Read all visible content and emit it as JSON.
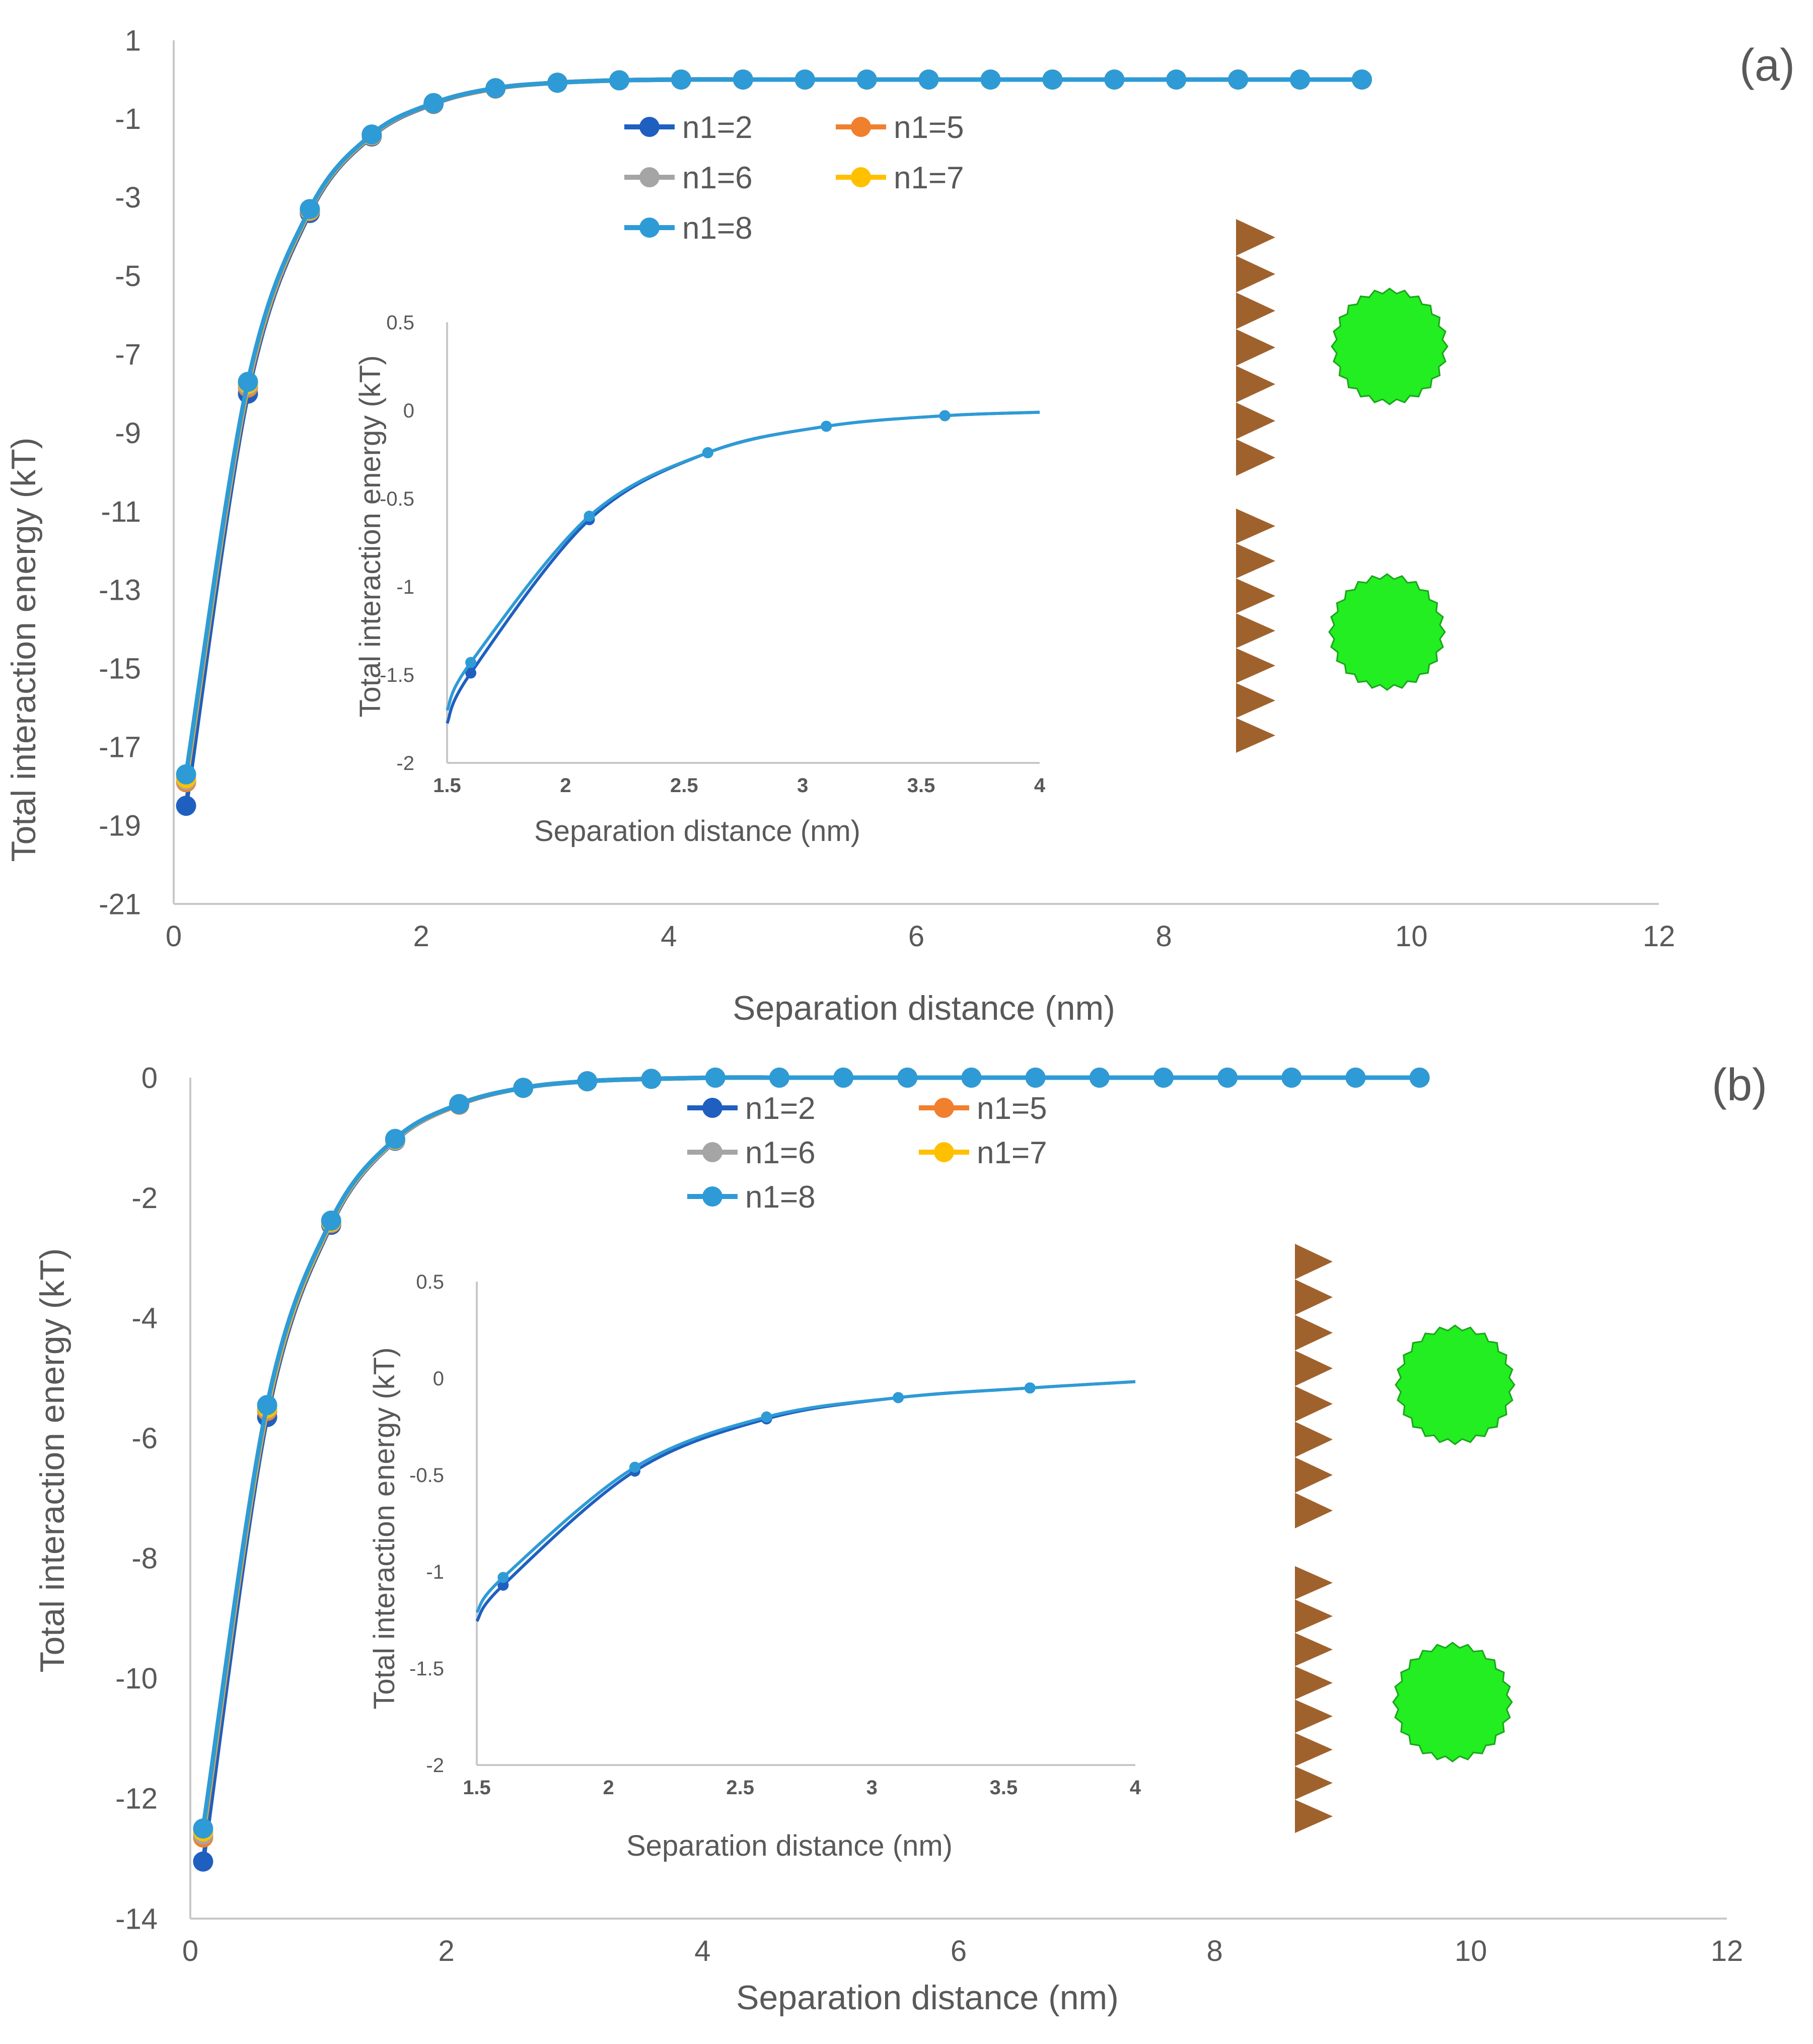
{
  "colors": {
    "n1=2": "#1f5fbf",
    "n1=5": "#f07f2e",
    "n1=6": "#a5a5a5",
    "n1=7": "#ffc000",
    "n1=8": "#2e9bd6",
    "axis": "#c8c8c8",
    "tick": "#595959",
    "particle": "#22ee22",
    "particle_edge": "#1aa51a",
    "surface": "#a0622d"
  },
  "chart_data": [
    {
      "type": "line",
      "panel": "main-a",
      "panel_label": "(a)",
      "xlabel": "Separation distance (nm)",
      "ylabel": "Total interaction energy (kT)",
      "xlim": [
        0,
        12
      ],
      "ylim": [
        -21,
        1
      ],
      "xticks": [
        "0",
        "2",
        "4",
        "6",
        "8",
        "10",
        "12"
      ],
      "yticks": [
        "1",
        "-1",
        "-3",
        "-5",
        "-7",
        "-9",
        "-11",
        "-13",
        "-15",
        "-17",
        "-19",
        "-21"
      ],
      "legend_location": "top-center",
      "x": [
        0.1,
        0.6,
        1.1,
        1.6,
        2.1,
        2.6,
        3.1,
        3.6,
        4.1,
        4.6,
        5.1,
        5.6,
        6.1,
        6.6,
        7.1,
        7.6,
        8.1,
        8.6,
        9.1,
        9.6
      ],
      "series": [
        {
          "name": "n1=2",
          "values": [
            -18.5,
            -8.0,
            -3.4,
            -1.45,
            -0.62,
            -0.23,
            -0.08,
            -0.02,
            0,
            0,
            0,
            0,
            0,
            0,
            0,
            0,
            0,
            0,
            0,
            0
          ]
        },
        {
          "name": "n1=5",
          "values": [
            -17.9,
            -7.85,
            -3.35,
            -1.43,
            -0.61,
            -0.23,
            -0.08,
            -0.02,
            0,
            0,
            0,
            0,
            0,
            0,
            0,
            0,
            0,
            0,
            0,
            0
          ]
        },
        {
          "name": "n1=6",
          "values": [
            -17.85,
            -7.8,
            -3.33,
            -1.42,
            -0.6,
            -0.22,
            -0.08,
            -0.02,
            0,
            0,
            0,
            0,
            0,
            0,
            0,
            0,
            0,
            0,
            0,
            0
          ]
        },
        {
          "name": "n1=7",
          "values": [
            -17.8,
            -7.75,
            -3.32,
            -1.41,
            -0.6,
            -0.22,
            -0.08,
            -0.02,
            0,
            0,
            0,
            0,
            0,
            0,
            0,
            0,
            0,
            0,
            0,
            0
          ]
        },
        {
          "name": "n1=8",
          "values": [
            -17.7,
            -7.7,
            -3.3,
            -1.4,
            -0.6,
            -0.22,
            -0.08,
            -0.02,
            0,
            0,
            0,
            0,
            0,
            0,
            0,
            0,
            0,
            0,
            0,
            0
          ]
        }
      ]
    },
    {
      "type": "line",
      "panel": "inset-a",
      "xlabel": "Separation distance (nm)",
      "ylabel": "Total interaction energy (kT)",
      "xlim": [
        1.5,
        4
      ],
      "ylim": [
        -2,
        0.5
      ],
      "xticks": [
        "1.5",
        "2",
        "2.5",
        "3",
        "3.5",
        "4"
      ],
      "yticks": [
        "0.5",
        "0",
        "-0.5",
        "-1",
        "-1.5",
        "-2"
      ],
      "x": [
        1.6,
        2.1,
        2.6,
        3.1,
        3.6
      ],
      "series": [
        {
          "name": "n1=2",
          "values": [
            -1.49,
            -0.62,
            -0.24,
            -0.09,
            -0.03
          ]
        },
        {
          "name": "n1=8",
          "values": [
            -1.43,
            -0.6,
            -0.24,
            -0.09,
            -0.03
          ]
        }
      ]
    },
    {
      "type": "line",
      "panel": "main-b",
      "panel_label": "(b)",
      "xlabel": "Separation distance (nm)",
      "ylabel": "Total interaction energy (kT)",
      "xlim": [
        0,
        12
      ],
      "ylim": [
        -14,
        0
      ],
      "xticks": [
        "0",
        "2",
        "4",
        "6",
        "8",
        "10",
        "12"
      ],
      "yticks": [
        "0",
        "-2",
        "-4",
        "-6",
        "-8",
        "-10",
        "-12",
        "-14"
      ],
      "legend_location": "top-center",
      "x": [
        0.1,
        0.6,
        1.1,
        1.6,
        2.1,
        2.6,
        3.1,
        3.6,
        4.1,
        4.6,
        5.1,
        5.6,
        6.1,
        6.6,
        7.1,
        7.6,
        8.1,
        8.6,
        9.1,
        9.6
      ],
      "series": [
        {
          "name": "n1=2",
          "values": [
            -13.05,
            -5.65,
            -2.45,
            -1.05,
            -0.45,
            -0.17,
            -0.06,
            -0.02,
            0,
            0,
            0,
            0,
            0,
            0,
            0,
            0,
            0,
            0,
            0,
            0
          ]
        },
        {
          "name": "n1=5",
          "values": [
            -12.65,
            -5.55,
            -2.42,
            -1.04,
            -0.45,
            -0.17,
            -0.06,
            -0.02,
            0,
            0,
            0,
            0,
            0,
            0,
            0,
            0,
            0,
            0,
            0,
            0
          ]
        },
        {
          "name": "n1=6",
          "values": [
            -12.6,
            -5.52,
            -2.41,
            -1.04,
            -0.44,
            -0.17,
            -0.06,
            -0.02,
            0,
            0,
            0,
            0,
            0,
            0,
            0,
            0,
            0,
            0,
            0,
            0
          ]
        },
        {
          "name": "n1=7",
          "values": [
            -12.55,
            -5.5,
            -2.4,
            -1.03,
            -0.44,
            -0.17,
            -0.06,
            -0.02,
            0,
            0,
            0,
            0,
            0,
            0,
            0,
            0,
            0,
            0,
            0,
            0
          ]
        },
        {
          "name": "n1=8",
          "values": [
            -12.5,
            -5.45,
            -2.38,
            -1.02,
            -0.44,
            -0.17,
            -0.06,
            -0.02,
            0,
            0,
            0,
            0,
            0,
            0,
            0,
            0,
            0,
            0,
            0,
            0
          ]
        }
      ]
    },
    {
      "type": "line",
      "panel": "inset-b",
      "xlabel": "Separation distance (nm)",
      "ylabel": "Total interaction energy (kT)",
      "xlim": [
        1.5,
        4
      ],
      "ylim": [
        -2,
        0.5
      ],
      "xticks": [
        "1.5",
        "2",
        "2.5",
        "3",
        "3.5",
        "4"
      ],
      "yticks": [
        "0.5",
        "0",
        "-0.5",
        "-1",
        "-1.5",
        "-2"
      ],
      "x": [
        1.6,
        2.1,
        2.6,
        3.1,
        3.6
      ],
      "series": [
        {
          "name": "n1=2",
          "values": [
            -1.07,
            -0.48,
            -0.21,
            -0.1,
            -0.05
          ]
        },
        {
          "name": "n1=8",
          "values": [
            -1.03,
            -0.46,
            -0.2,
            -0.1,
            -0.05
          ]
        }
      ]
    }
  ]
}
